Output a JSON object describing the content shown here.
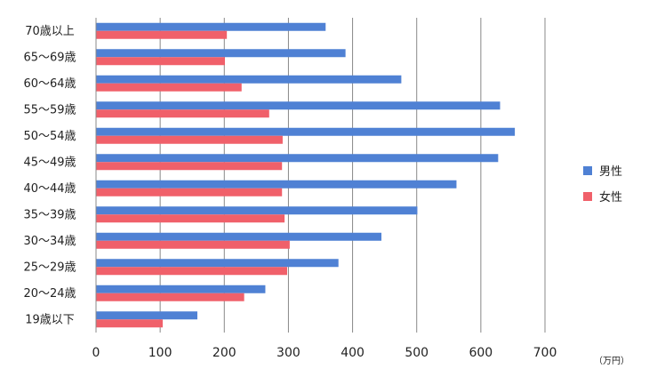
{
  "chart_data": {
    "type": "bar",
    "orientation": "horizontal",
    "categories": [
      "70歳以上",
      "65〜69歳",
      "60〜64歳",
      "55〜59歳",
      "50〜54歳",
      "45〜49歳",
      "40〜44歳",
      "35〜39歳",
      "30〜34歳",
      "25〜29歳",
      "20〜24歳",
      "19歳以下"
    ],
    "series": [
      {
        "name": "男性",
        "color": "#4f81d4",
        "values": [
          358,
          389,
          476,
          630,
          653,
          627,
          562,
          501,
          445,
          378,
          264,
          158
        ]
      },
      {
        "name": "女性",
        "color": "#f0606a",
        "values": [
          204,
          201,
          227,
          270,
          291,
          290,
          290,
          294,
          302,
          298,
          231,
          104
        ]
      }
    ],
    "xlim": [
      0,
      700
    ],
    "xticks": [
      "0",
      "100",
      "200",
      "300",
      "400",
      "500",
      "600",
      "700"
    ],
    "unit": "（万円）",
    "grid": true,
    "legend_position": "right"
  }
}
